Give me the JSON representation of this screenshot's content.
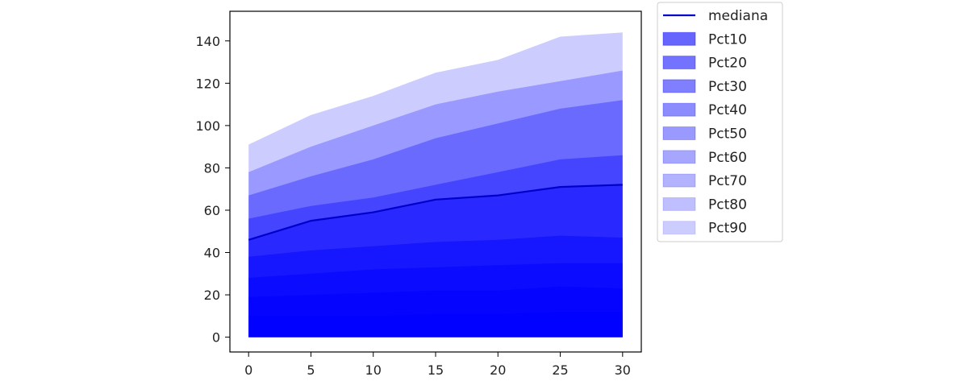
{
  "chart_data": {
    "type": "area",
    "title": "",
    "xlabel": "",
    "ylabel": "",
    "xlim": [
      -1.5,
      31.5
    ],
    "ylim": [
      -7,
      154
    ],
    "x_ticks": [
      0,
      5,
      10,
      15,
      20,
      25,
      30
    ],
    "y_ticks": [
      0,
      20,
      40,
      60,
      80,
      100,
      120,
      140
    ],
    "grid": false,
    "legend_position": "outside-top-right",
    "base_color": "#0000ff",
    "x": [
      0,
      5,
      10,
      15,
      20,
      25,
      30
    ],
    "median": {
      "name": "mediana",
      "color": "#0000cc",
      "values": [
        46,
        55,
        59,
        65,
        67,
        71,
        72
      ]
    },
    "bands": [
      {
        "name": "Pct10",
        "opacity": 0.6,
        "values": [
          10,
          10,
          10,
          11,
          11,
          12,
          12
        ]
      },
      {
        "name": "Pct20",
        "opacity": 0.55,
        "values": [
          19,
          20,
          21,
          22,
          22,
          24,
          23
        ]
      },
      {
        "name": "Pct30",
        "opacity": 0.5,
        "values": [
          28,
          30,
          32,
          33,
          34,
          35,
          35
        ]
      },
      {
        "name": "Pct40",
        "opacity": 0.45,
        "values": [
          38,
          41,
          43,
          45,
          46,
          48,
          47
        ]
      },
      {
        "name": "Pct50",
        "opacity": 0.4,
        "values": [
          46,
          55,
          59,
          65,
          67,
          71,
          72
        ]
      },
      {
        "name": "Pct60",
        "opacity": 0.35,
        "values": [
          56,
          62,
          66,
          72,
          78,
          84,
          86
        ]
      },
      {
        "name": "Pct70",
        "opacity": 0.3,
        "values": [
          67,
          76,
          84,
          94,
          101,
          108,
          112
        ]
      },
      {
        "name": "Pct80",
        "opacity": 0.25,
        "values": [
          78,
          90,
          100,
          110,
          116,
          121,
          126
        ]
      },
      {
        "name": "Pct90",
        "opacity": 0.2,
        "values": [
          91,
          105,
          114,
          125,
          131,
          142,
          144
        ]
      }
    ]
  }
}
